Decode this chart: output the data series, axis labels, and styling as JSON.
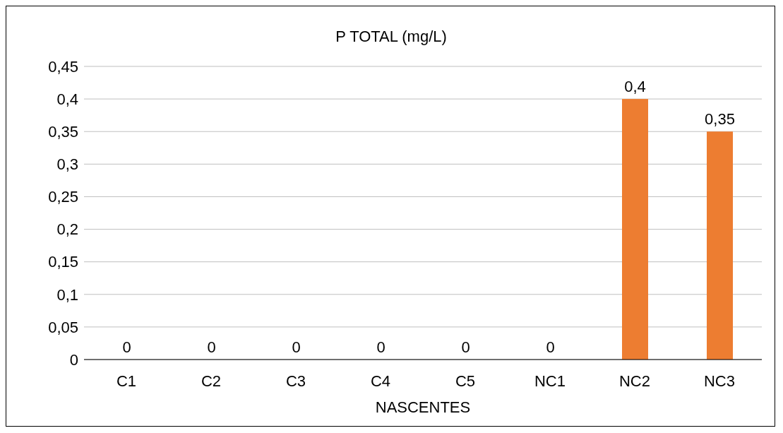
{
  "chart_data": {
    "type": "bar",
    "title": "P TOTAL (mg/L)",
    "xlabel": "NASCENTES",
    "categories": [
      "C1",
      "C2",
      "C3",
      "C4",
      "C5",
      "NC1",
      "NC2",
      "NC3"
    ],
    "values": [
      0,
      0,
      0,
      0,
      0,
      0,
      0.4,
      0.35
    ],
    "color": "#ed7d31",
    "ylim": [
      0,
      0.45
    ],
    "yticks": [
      0,
      {
        "value": 0.05,
        "label": "0,05"
      },
      {
        "value": 0.1,
        "label": "0,1"
      },
      {
        "value": 0.15,
        "label": "0,15"
      },
      {
        "value": 0.2,
        "label": "0,2"
      },
      {
        "value": 0.25,
        "label": "0,25"
      },
      {
        "value": 0.3,
        "label": "0,3"
      },
      {
        "value": 0.35,
        "label": "0,35"
      },
      {
        "value": 0.4,
        "label": "0,4"
      },
      {
        "value": 0.45,
        "label": "0,45"
      }
    ],
    "value_labels": [
      "0",
      "0",
      "0",
      "0",
      "0",
      "0",
      "0,4",
      "0,35"
    ],
    "grid": "y"
  }
}
